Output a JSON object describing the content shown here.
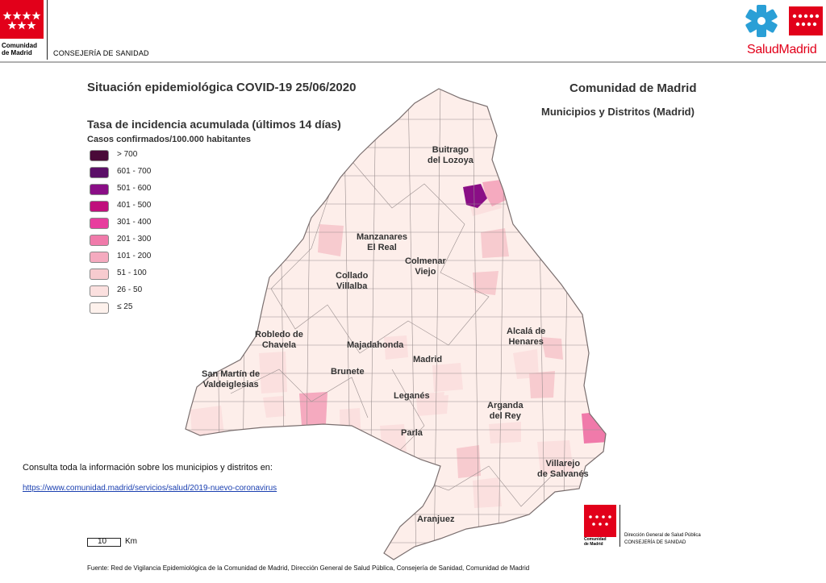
{
  "header": {
    "org_name_line1": "Comunidad",
    "org_name_line2": "de Madrid",
    "department": "CONSEJERÍA DE SANIDAD",
    "brand": "SaludMadrid"
  },
  "title": "Situación epidemiológica COVID-19  25/06/2020",
  "region": "Comunidad de Madrid",
  "subregion": "Municipios y Distritos (Madrid)",
  "legend": {
    "title": "Tasa de incidencia acumulada (últimos 14 días)",
    "subtitle": "Casos confirmados/100.000 habitantes",
    "items": [
      {
        "label": "> 700",
        "color": "#4a0a38"
      },
      {
        "label": "601 - 700",
        "color": "#5c0f68"
      },
      {
        "label": "501 - 600",
        "color": "#8a0e86"
      },
      {
        "label": "401 - 500",
        "color": "#c0107c"
      },
      {
        "label": "301 - 400",
        "color": "#e83d9e"
      },
      {
        "label": "201 - 300",
        "color": "#f07aaa"
      },
      {
        "label": "101 - 200",
        "color": "#f5aabf"
      },
      {
        "label": "51 - 100",
        "color": "#f7cbcf"
      },
      {
        "label": "26 - 50",
        "color": "#fbe0df"
      },
      {
        "label": "≤ 25",
        "color": "#fdf1ec"
      }
    ]
  },
  "towns": [
    {
      "name": "Buitrago\ndel Lozoya"
    },
    {
      "name": "Manzanares\nEl Real"
    },
    {
      "name": "Colmenar\nViejo"
    },
    {
      "name": "Collado\nVillalba"
    },
    {
      "name": "Robledo de\nChavela"
    },
    {
      "name": "Majadahonda"
    },
    {
      "name": "Madrid"
    },
    {
      "name": "Alcalá de\nHenares"
    },
    {
      "name": "San Martín de\nValdeiglesias"
    },
    {
      "name": "Brunete"
    },
    {
      "name": "Leganés"
    },
    {
      "name": "Arganda\ndel Rey"
    },
    {
      "name": "Parla"
    },
    {
      "name": "Villarejo\nde Salvanés"
    },
    {
      "name": "Aranjuez"
    }
  ],
  "info": {
    "text": "Consulta toda la información sobre los municipios y distritos en:",
    "link": "https://www.comunidad.madrid/servicios/salud/2019-nuevo-coronavirus"
  },
  "scale": {
    "value": "10",
    "unit": "Km"
  },
  "bottom_logo": {
    "org_line1": "Comunidad",
    "org_line2": "de Madrid",
    "directorate": "Dirección General de Salud Pública",
    "department": "CONSEJERÍA DE SANIDAD"
  },
  "source": "Fuente: Red de Vigilancia Epidemiológica de la Comunidad de Madrid, Dirección General de Salud Pública, Consejería de Sanidad, Comunidad de Madrid"
}
